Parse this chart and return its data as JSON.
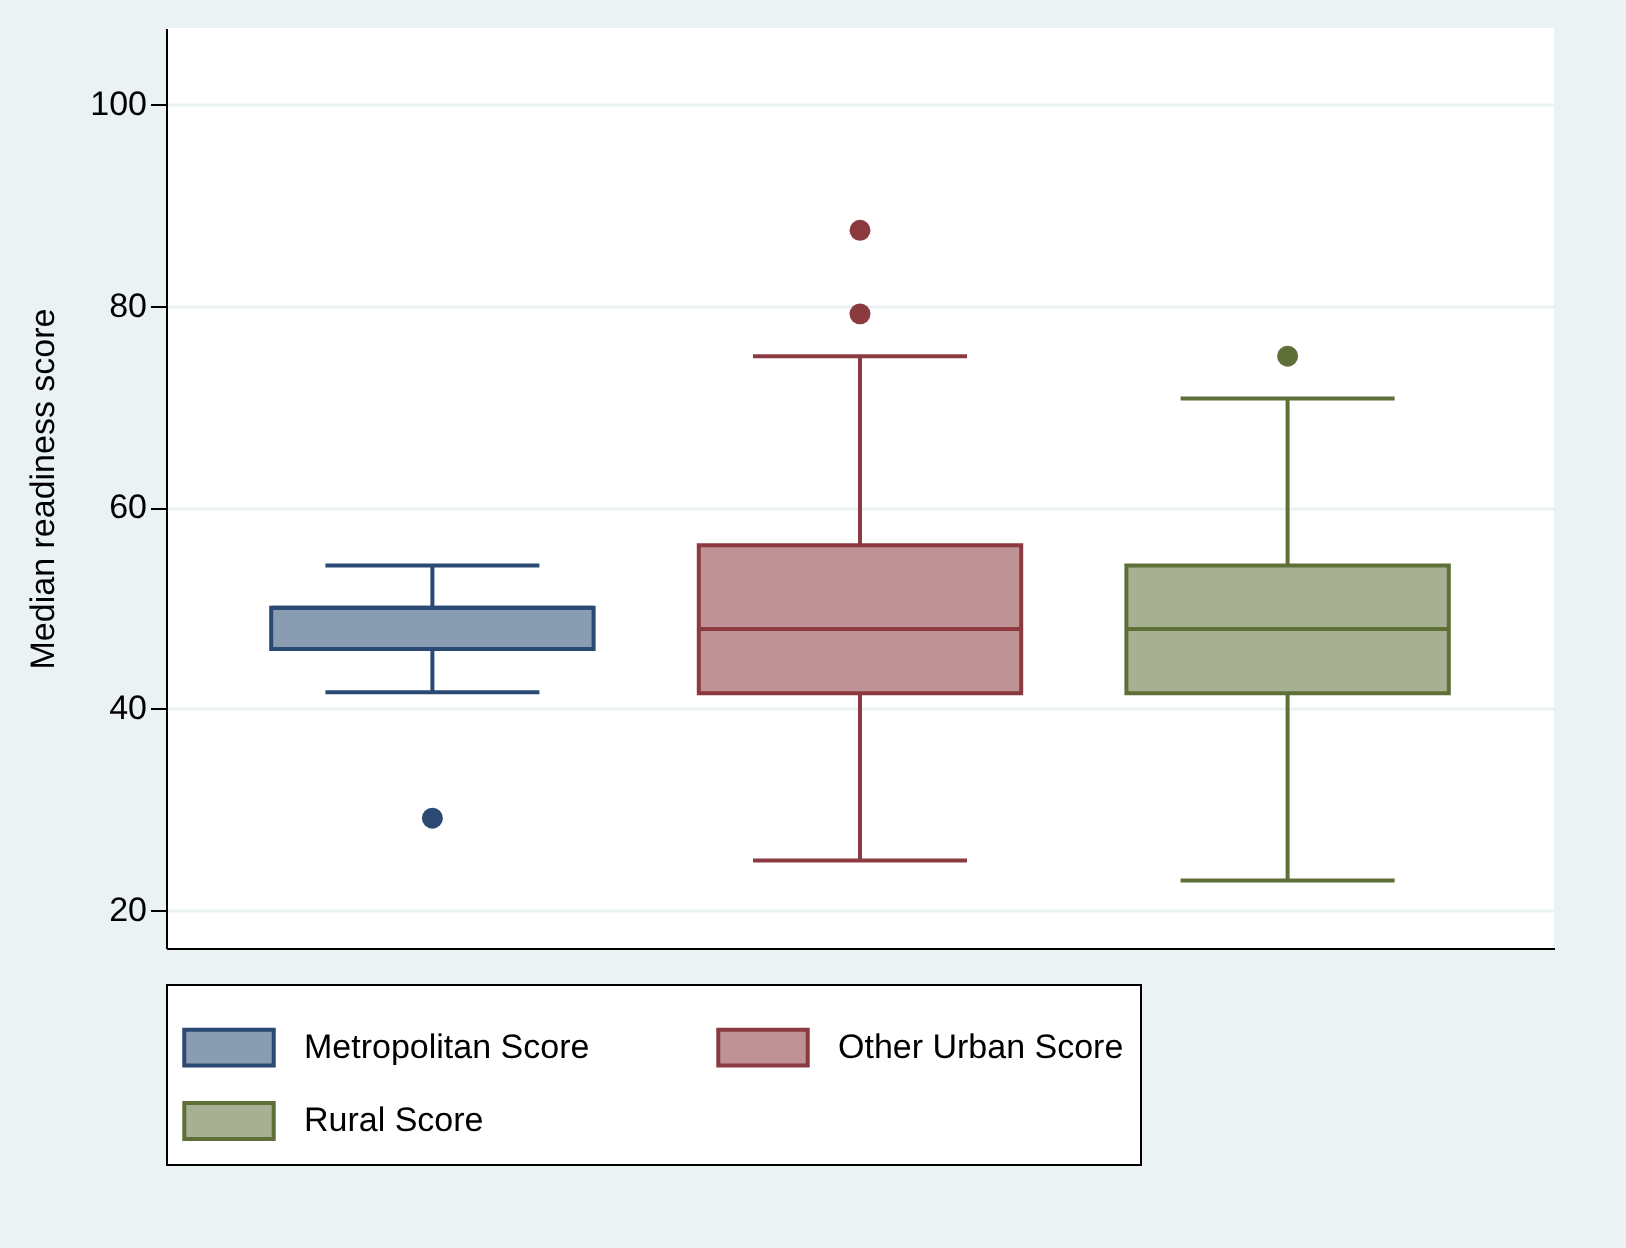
{
  "chart_data": {
    "type": "box",
    "ylabel": "Median readiness score",
    "categories": [
      null,
      null,
      null
    ],
    "ylim": [
      16.2,
      107.6
    ],
    "yticks": [
      20,
      40,
      60,
      80,
      100
    ],
    "grid": "y",
    "legend": "bottom",
    "series": [
      {
        "name": "Metropolitan Score",
        "color": "#2a4a73",
        "boxes": [
          {
            "low": 41.6,
            "q1": 45.9,
            "median": 50,
            "q3": 50,
            "high": 54.2,
            "outliers": [
              29.1
            ]
          },
          null,
          null
        ]
      },
      {
        "name": "Other Urban Score",
        "color": "#8b3a40",
        "boxes": [
          null,
          {
            "low": 24.9,
            "q1": 41.5,
            "median": 47.9,
            "q3": 56.2,
            "high": 75,
            "outliers": [
              79.2,
              87.5
            ]
          },
          null
        ]
      },
      {
        "name": "Rural Score",
        "color": "#5e7038",
        "boxes": [
          null,
          null,
          {
            "low": 22.9,
            "q1": 41.5,
            "median": 47.9,
            "q3": 54.2,
            "high": 70.8,
            "outliers": [
              75
            ]
          }
        ]
      }
    ]
  }
}
